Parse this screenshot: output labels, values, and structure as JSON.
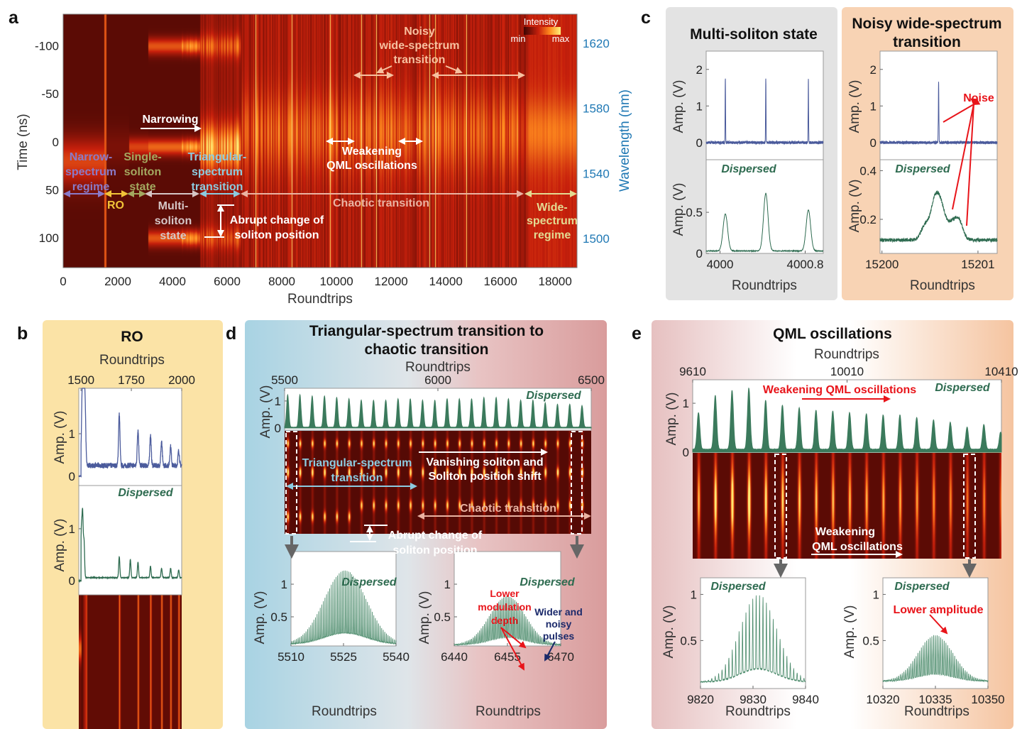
{
  "panels": {
    "a": {
      "label": "a",
      "colorbar": {
        "title": "Intensity",
        "min_label": "min",
        "max_label": "max"
      },
      "annotations": {
        "narrow": [
          "Narrow-",
          "spectrum",
          "regime"
        ],
        "single": [
          "Single-",
          "soliton",
          "state"
        ],
        "triangular": [
          "Triangular-",
          "spectrum",
          "transition"
        ],
        "narrowing": "Narrowing",
        "weakening": [
          "Weakening",
          "QML oscillations"
        ],
        "noisy": [
          "Noisy",
          "wide-spectrum",
          "transition"
        ],
        "ro": "RO",
        "multi": [
          "Multi-",
          "soliton",
          "state"
        ],
        "abrupt": [
          "Abrupt change of",
          "soliton position"
        ],
        "chaotic": "Chaotic transition",
        "wide": [
          "Wide-",
          "spectrum",
          "regime"
        ]
      }
    },
    "b": {
      "label": "b",
      "title": "RO",
      "dispersed": "Dispersed"
    },
    "c": {
      "label": "c",
      "left_title": "Multi-soliton state",
      "right_title": [
        "Noisy wide-spectrum",
        "transition"
      ],
      "dispersed": "Dispersed",
      "noise": "Noise"
    },
    "d": {
      "label": "d",
      "title": [
        "Triangular-spectrum transition to",
        "chaotic transition"
      ],
      "dispersed": "Dispersed",
      "annotations": {
        "triangular": [
          "Triangular-spectrum",
          "transition"
        ],
        "vanishing": [
          "Vanishing soliton and",
          "Soliton position shift"
        ],
        "chaotic": "Chaotic transition",
        "abrupt": [
          "Abrupt change of",
          "soliton position"
        ],
        "lower": [
          "Lower",
          "modulation",
          "depth"
        ],
        "wider": [
          "Wider and",
          "noisy",
          "pulses"
        ]
      }
    },
    "e": {
      "label": "e",
      "title": "QML oscillations",
      "dispersed": "Dispersed",
      "annotations": {
        "weakening_top": "Weakening QML oscillations",
        "weakening": [
          "Weakening",
          "QML oscillations"
        ],
        "lower_amp": "Lower amplitude"
      }
    }
  },
  "colors": {
    "time_trace": "#4b5b9c",
    "dispersed_trace": "#2e6b50",
    "wavelength_axis": "#1f78b4",
    "annotation_red": "#e8141a",
    "annotation_navy": "#1b2a6b"
  },
  "chart_data": [
    {
      "id": "a",
      "type": "heatmap",
      "xlabel": "Roundtrips",
      "ylabel": "Time (ns)",
      "y2label": "Wavelength (nm)",
      "xlim": [
        0,
        18800
      ],
      "ylim": [
        -133,
        131
      ],
      "y2lim": [
        1482,
        1638
      ],
      "xticks": [
        0,
        2000,
        4000,
        6000,
        8000,
        10000,
        12000,
        14000,
        16000,
        18000
      ],
      "yticks": [
        -100,
        -50,
        0,
        50,
        100
      ],
      "y2ticks": [
        1620,
        1580,
        1540,
        1500
      ],
      "colormap": [
        "#3c0503",
        "#c8200c",
        "#ff8a1e",
        "#fff07a"
      ]
    },
    {
      "id": "b_time",
      "type": "line",
      "xlabel": "Roundtrips",
      "ylabel": "Amp. (V)",
      "xlim": [
        1489,
        2000
      ],
      "ylim": [
        -0.22,
        2.07
      ],
      "xticks": [
        1500,
        1750,
        2000
      ],
      "yticks": [
        0,
        1
      ],
      "start": 1500,
      "baseline": 0.25,
      "noise": 0.12,
      "width": 5,
      "peaks": [
        [
          1506,
          1.6
        ],
        [
          1513,
          1.6
        ],
        [
          1520,
          1.5
        ],
        [
          1690,
          1.2
        ],
        [
          1783,
          0.85
        ],
        [
          1845,
          0.72
        ],
        [
          1900,
          0.55
        ],
        [
          1945,
          0.45
        ],
        [
          1985,
          0.35
        ]
      ]
    },
    {
      "id": "b_dispersed",
      "type": "line",
      "ylabel": "Amp. (V)",
      "xlim": [
        1489,
        2000
      ],
      "ylim": [
        -0.27,
        1.83
      ],
      "yticks": [
        0,
        1
      ],
      "start": 1500,
      "baseline": 0.06,
      "noise": 0.01,
      "width": 4,
      "peaks": [
        [
          1502,
          0.9
        ],
        [
          1508,
          1.2
        ],
        [
          1515,
          0.7
        ],
        [
          1690,
          0.4
        ],
        [
          1745,
          0.35
        ],
        [
          1783,
          0.3
        ],
        [
          1845,
          0.22
        ],
        [
          1900,
          0.18
        ],
        [
          1945,
          0.18
        ],
        [
          1985,
          0.15
        ]
      ]
    },
    {
      "id": "b_heatmap",
      "type": "heatmap",
      "xlim": [
        1489,
        2000
      ]
    },
    {
      "id": "c_multi_time",
      "type": "line",
      "ylabel": "Amp. (V)",
      "xlim": [
        3999.87,
        4000.97
      ],
      "ylim": [
        -0.47,
        2.5
      ],
      "yticks": [
        0,
        1,
        2
      ],
      "baseline": 0,
      "noise": 0.08,
      "width": 0.003,
      "peaks": [
        [
          4000.05,
          1.75
        ],
        [
          4000.43,
          1.75
        ],
        [
          4000.83,
          1.75
        ]
      ]
    },
    {
      "id": "c_multi_dispersed",
      "type": "line",
      "xlabel": "Roundtrips",
      "ylabel": "Amp. (V)",
      "xlim": [
        3999.87,
        4000.97
      ],
      "ylim": [
        0,
        1.14
      ],
      "xticks": [
        4000,
        4000.8
      ],
      "yticks": [
        0,
        0.5
      ],
      "baseline": 0.03,
      "noise": 0.008,
      "width": 0.03,
      "peaks": [
        [
          4000.05,
          0.45
        ],
        [
          4000.43,
          0.7
        ],
        [
          4000.83,
          0.5
        ]
      ]
    },
    {
      "id": "c_noisy_time",
      "type": "line",
      "ylabel": "Amp. (V)",
      "xlim": [
        15199.98,
        15201.2
      ],
      "ylim": [
        -0.47,
        2.5
      ],
      "yticks": [
        0,
        1,
        2
      ],
      "baseline": 0,
      "noise": 0.08,
      "width": 0.004,
      "peaks": [
        [
          15200.59,
          1.7
        ]
      ]
    },
    {
      "id": "c_noisy_dispersed",
      "type": "line",
      "xlabel": "Roundtrips",
      "ylabel": "Amp. (V)",
      "xlim": [
        15199.98,
        15201.2
      ],
      "ylim": [
        0.06,
        0.445
      ],
      "xticks": [
        15200,
        15201
      ],
      "yticks": [
        0.2,
        0.4
      ],
      "baseline": 0.115,
      "noise": 0.015,
      "width": 0.06,
      "peaks": [
        [
          15200.45,
          0.06
        ],
        [
          15200.55,
          0.15
        ],
        [
          15200.62,
          0.12
        ],
        [
          15200.72,
          0.06
        ],
        [
          15200.8,
          0.08
        ]
      ]
    },
    {
      "id": "d_top",
      "type": "area",
      "xlabel": "Roundtrips",
      "ylabel": "Amp. (V)",
      "xlim": [
        5500,
        6500
      ],
      "ylim": [
        -0.08,
        1.47
      ],
      "xticks": [
        5500,
        6000,
        6500
      ],
      "yticks": [
        0,
        1
      ],
      "baseline": 0.03,
      "noise": 0.01,
      "width": 5,
      "first": 5510,
      "period": 40,
      "heights": [
        1.2,
        1.2,
        1.15,
        1.15,
        1.1,
        1.05,
        1.0,
        1.0,
        1.0,
        1.05,
        1.05,
        1.0,
        1.0,
        1.05,
        1.05,
        1.05,
        1.1,
        1.1,
        1.05,
        1.0,
        1.0,
        0.9,
        0.85,
        0.85,
        0.8
      ]
    },
    {
      "id": "d_heatmap",
      "type": "heatmap",
      "xlim": [
        5500,
        6500
      ]
    },
    {
      "id": "d_left",
      "type": "comb",
      "xlabel": "Roundtrips",
      "ylabel": "Amp. (V)",
      "xlim": [
        5510,
        5540
      ],
      "ylim": [
        0.054,
        1.5
      ],
      "xticks": [
        5510,
        5525,
        5540
      ],
      "yticks": [
        0.5,
        1
      ],
      "center": 5525.5,
      "sigma": 6,
      "amplitude": 1.15,
      "period": 0.45,
      "sharpness": 8,
      "baseline": 0.08
    },
    {
      "id": "d_right",
      "type": "comb",
      "xlabel": "Roundtrips",
      "ylabel": "Amp. (V)",
      "xlim": [
        6440,
        6470
      ],
      "ylim": [
        0.054,
        1.5
      ],
      "xticks": [
        6440,
        6455,
        6470
      ],
      "yticks": [
        0.5,
        1
      ],
      "center": 6455,
      "sigma": 5,
      "amplitude": 0.75,
      "period": 0.45,
      "sharpness": 3,
      "baseline": 0.07
    },
    {
      "id": "e_top",
      "type": "area",
      "xlabel": "Roundtrips",
      "ylabel": "Amp. (V)",
      "xlim": [
        9610,
        10410
      ],
      "ylim": [
        0,
        1.48
      ],
      "xticks": [
        9610,
        10010,
        10410
      ],
      "yticks": [
        0,
        1
      ],
      "baseline": 0.06,
      "noise": 0.01,
      "width": 5,
      "first": 9625,
      "period": 43.5,
      "heights": [
        0.75,
        1.1,
        1.2,
        1.25,
        1.0,
        0.9,
        0.85,
        0.8,
        0.78,
        0.75,
        0.72,
        0.7,
        0.7,
        0.65,
        0.6,
        0.55,
        0.45,
        0.5,
        0.35
      ]
    },
    {
      "id": "e_heatmap",
      "type": "heatmap",
      "xlim": [
        9610,
        10410
      ]
    },
    {
      "id": "e_left",
      "type": "comb",
      "xlabel": "Roundtrips",
      "ylabel": "Amp. (V)",
      "xlim": [
        9820,
        9840
      ],
      "ylim": [
        -0.02,
        1.18
      ],
      "xticks": [
        9820,
        9830,
        9840
      ],
      "yticks": [
        0.5,
        1
      ],
      "center": 9831,
      "sigma": 3.5,
      "amplitude": 0.95,
      "period": 0.65,
      "sharpness": 8,
      "baseline": 0.05
    },
    {
      "id": "e_right",
      "type": "comb",
      "xlabel": "Roundtrips",
      "ylabel": "Amp. (V)",
      "xlim": [
        10320,
        10350
      ],
      "ylim": [
        -0.02,
        1.18
      ],
      "xticks": [
        10320,
        10335,
        10350
      ],
      "yticks": [
        0.5,
        1
      ],
      "center": 10335,
      "sigma": 5,
      "amplitude": 0.5,
      "period": 0.5,
      "sharpness": 3,
      "baseline": 0.06
    }
  ]
}
